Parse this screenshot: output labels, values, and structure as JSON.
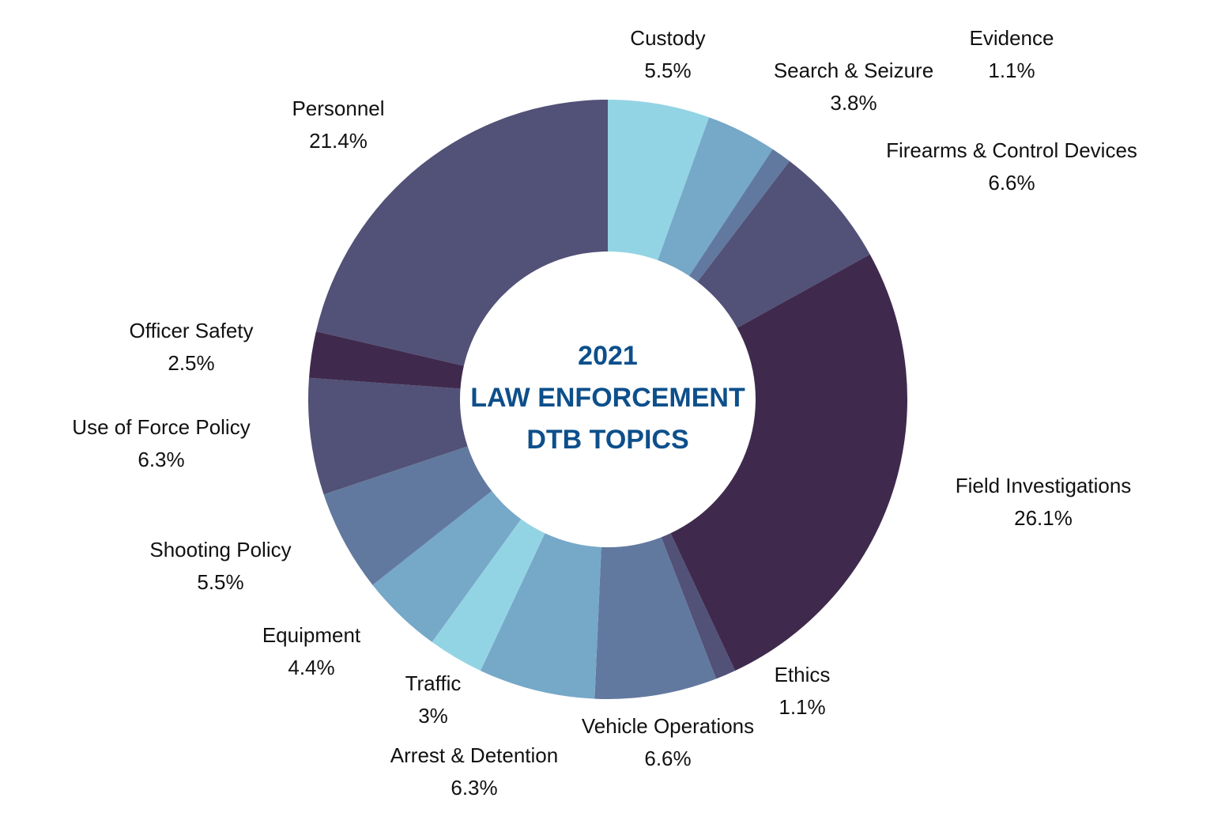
{
  "chart_data": {
    "type": "donut",
    "title": [
      "2021",
      "LAW ENFORCEMENT",
      "DTB TOPICS"
    ],
    "categories": [
      "Custody",
      "Search & Seizure",
      "Evidence",
      "Firearms & Control Devices",
      "Field Investigations",
      "Ethics",
      "Vehicle Operations",
      "Arrest & Detention",
      "Traffic",
      "Equipment",
      "Shooting Policy",
      "Use of Force Policy",
      "Officer Safety",
      "Personnel"
    ],
    "values": [
      5.5,
      3.8,
      1.1,
      6.6,
      26.1,
      1.1,
      6.6,
      6.3,
      3,
      4.4,
      5.5,
      6.3,
      2.5,
      21.4
    ],
    "value_labels": [
      "5.5%",
      "3.8%",
      "1.1%",
      "6.6%",
      "26.1%",
      "1.1%",
      "6.6%",
      "6.3%",
      "3%",
      "4.4%",
      "5.5%",
      "6.3%",
      "2.5%",
      "21.4%"
    ],
    "colors": [
      "#93d4e4",
      "#76a8c8",
      "#62799f",
      "#525177",
      "#3f2a4d",
      "#525177",
      "#62799f",
      "#76a8c8",
      "#93d4e4",
      "#76a8c8",
      "#62799f",
      "#525177",
      "#3f2a4d",
      "#525177"
    ]
  }
}
